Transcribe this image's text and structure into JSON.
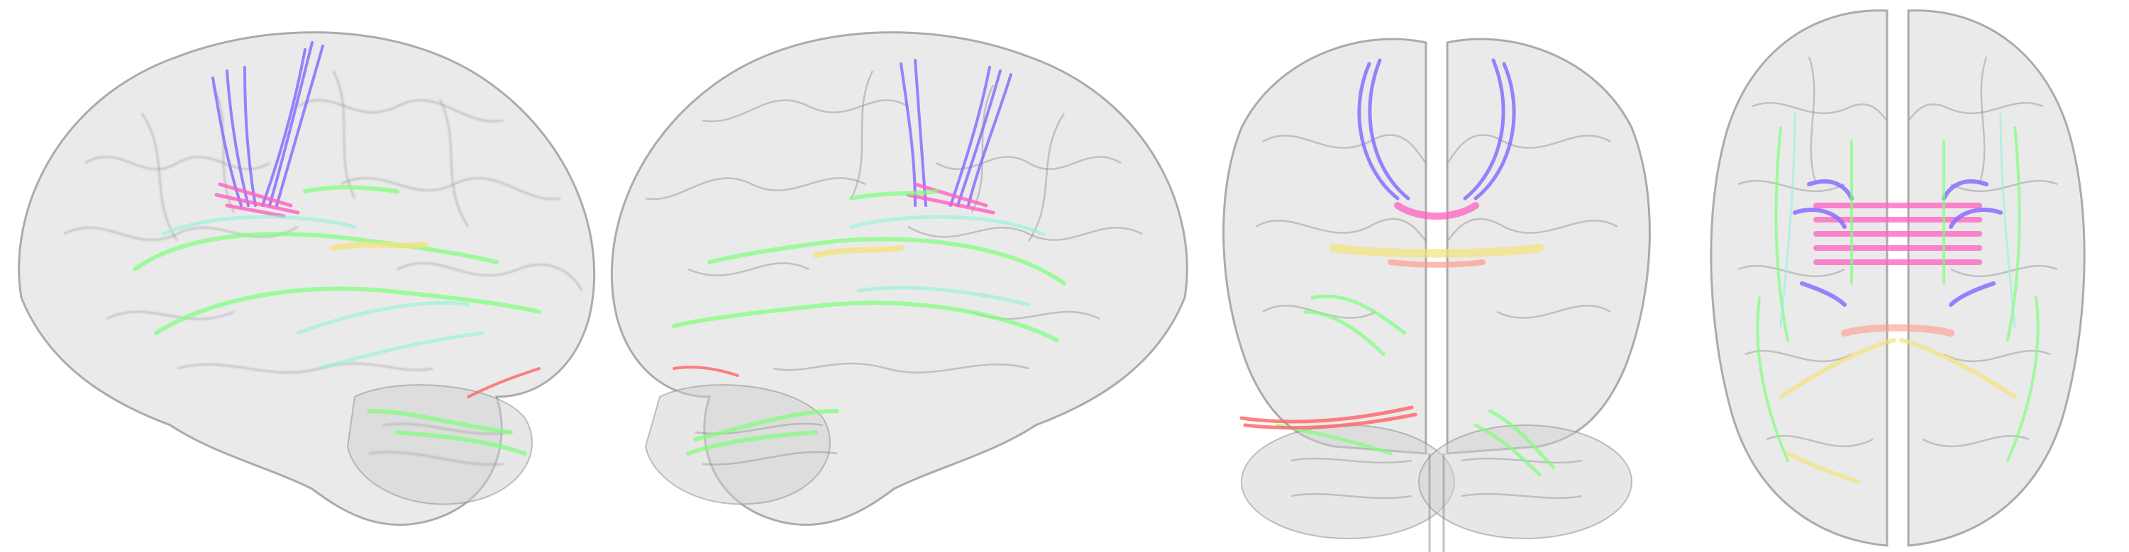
{
  "figure": {
    "background": "#ffffff",
    "brain_surface_color": "#b9b9b9",
    "tract_colors": {
      "projection": "#8a6cff",
      "projection_base": "#ff5fc0",
      "association": "#7dff7a",
      "association_alt": "#8ff2d8",
      "commissural": "#ff6a6a",
      "thalamic": "#f4e27a"
    },
    "views": [
      {
        "id": "left-lateral",
        "orientation": "sagittal-left"
      },
      {
        "id": "right-lateral",
        "orientation": "sagittal-right"
      },
      {
        "id": "posterior-coronal",
        "orientation": "coronal"
      },
      {
        "id": "superior-axial",
        "orientation": "axial"
      }
    ]
  }
}
